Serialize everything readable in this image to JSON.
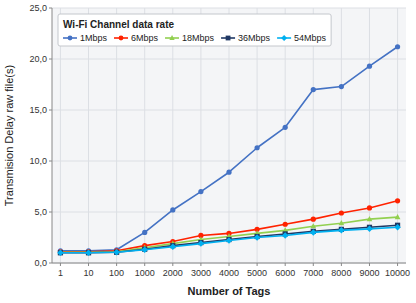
{
  "chart_data": {
    "type": "line",
    "title": "Wi-Fi Channel data rate",
    "x_label": "Number of Tags",
    "y_label": "Transmision Delay raw file(s)",
    "categories": [
      "1",
      "10",
      "100",
      "1000",
      "2000",
      "3000",
      "4000",
      "5000",
      "6000",
      "7000",
      "8000",
      "9000",
      "10000"
    ],
    "series": [
      {
        "name": "1Mbps",
        "color": "#4472C4",
        "marker": "circle",
        "values": [
          1.2,
          1.2,
          1.3,
          3.0,
          5.2,
          7.0,
          8.9,
          11.3,
          13.3,
          17.0,
          17.3,
          19.3,
          21.2
        ]
      },
      {
        "name": "6Mbps",
        "color": "#FF2200",
        "marker": "circle",
        "values": [
          1.1,
          1.1,
          1.2,
          1.7,
          2.1,
          2.7,
          2.9,
          3.3,
          3.8,
          4.3,
          4.9,
          5.4,
          6.1
        ]
      },
      {
        "name": "18Mbps",
        "color": "#92D050",
        "marker": "triangle",
        "values": [
          1.05,
          1.05,
          1.1,
          1.5,
          1.9,
          2.3,
          2.6,
          2.9,
          3.2,
          3.6,
          3.9,
          4.3,
          4.5
        ]
      },
      {
        "name": "36Mbps",
        "color": "#1F3864",
        "marker": "square",
        "values": [
          1.0,
          1.0,
          1.05,
          1.35,
          1.7,
          2.0,
          2.3,
          2.6,
          2.85,
          3.1,
          3.3,
          3.5,
          3.7
        ]
      },
      {
        "name": "54Mbps",
        "color": "#00B0F0",
        "marker": "diamond",
        "values": [
          1.0,
          1.0,
          1.05,
          1.3,
          1.6,
          1.9,
          2.2,
          2.5,
          2.7,
          3.0,
          3.2,
          3.35,
          3.5
        ]
      }
    ],
    "ylim": [
      0,
      25
    ],
    "yticks": [
      {
        "value": 0.0,
        "label": "0,0"
      },
      {
        "value": 5.0,
        "label": "5,0"
      },
      {
        "value": 10.0,
        "label": "10,0"
      },
      {
        "value": 15.0,
        "label": "15,0"
      },
      {
        "value": 20.0,
        "label": "20,0"
      },
      {
        "value": 25.0,
        "label": "25,0"
      }
    ],
    "grid": true,
    "legend": "upper left"
  }
}
